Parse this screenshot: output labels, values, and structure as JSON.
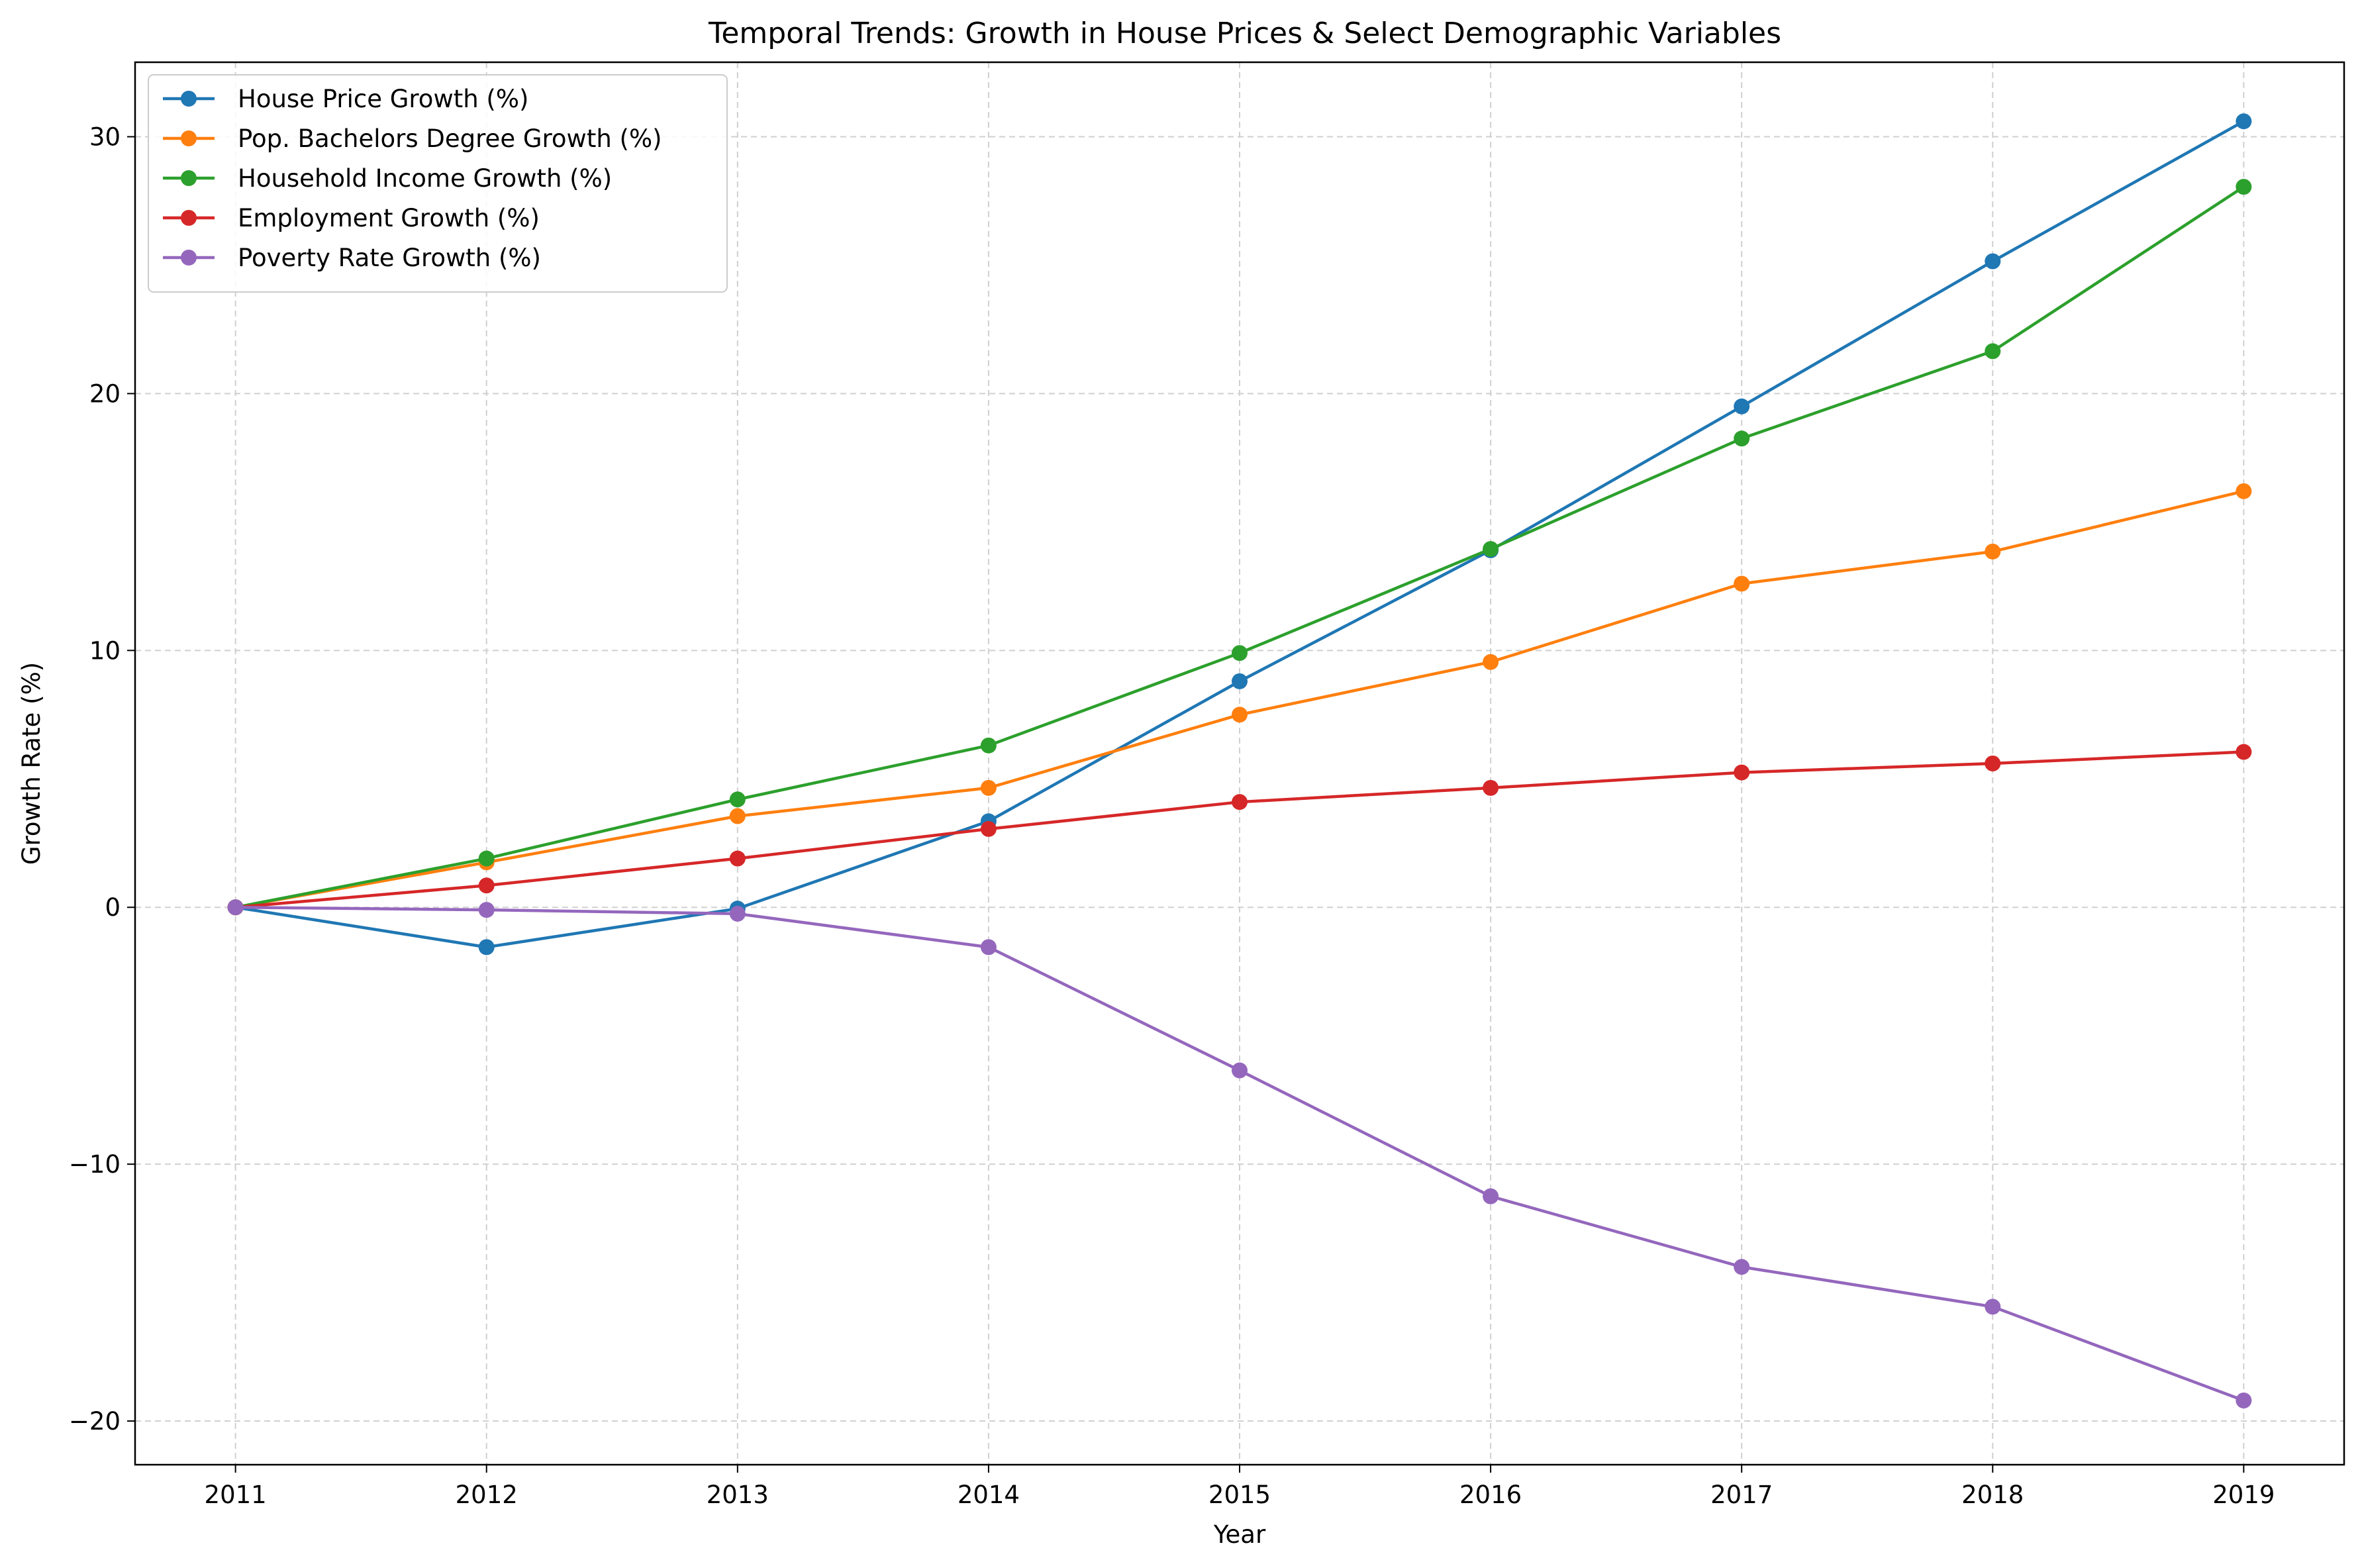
{
  "chart_data": {
    "type": "line",
    "title": "Temporal Trends: Growth in House Prices & Select Demographic Variables",
    "xlabel": "Year",
    "ylabel": "Growth Rate (%)",
    "x": [
      2011,
      2012,
      2013,
      2014,
      2015,
      2016,
      2017,
      2018,
      2019
    ],
    "x_tick_labels": [
      "2011",
      "2012",
      "2013",
      "2014",
      "2015",
      "2016",
      "2017",
      "2018",
      "2019"
    ],
    "xlim": [
      2010.6,
      2019.4
    ],
    "ylim": [
      -21.7,
      32.9
    ],
    "y_ticks": [
      -20,
      -10,
      0,
      10,
      20,
      30
    ],
    "y_tick_labels": [
      "−20",
      "−10",
      "0",
      "10",
      "20",
      "30"
    ],
    "grid": true,
    "legend_position": "upper-left",
    "series": [
      {
        "name": "House Price Growth (%)",
        "color": "#1f77b4",
        "values": [
          0,
          -1.55,
          -0.05,
          3.35,
          8.8,
          13.9,
          19.5,
          25.15,
          30.6
        ]
      },
      {
        "name": "Pop. Bachelors Degree Growth (%)",
        "color": "#ff7f0e",
        "values": [
          0,
          1.75,
          3.55,
          4.65,
          7.5,
          9.55,
          12.6,
          13.85,
          16.2
        ]
      },
      {
        "name": "Household Income Growth (%)",
        "color": "#2ca02c",
        "values": [
          0,
          1.9,
          4.2,
          6.3,
          9.9,
          13.95,
          18.25,
          21.65,
          28.05
        ]
      },
      {
        "name": "Employment Growth (%)",
        "color": "#d62728",
        "values": [
          0,
          0.85,
          1.9,
          3.05,
          4.1,
          4.65,
          5.25,
          5.6,
          6.05
        ]
      },
      {
        "name": "Poverty Rate Growth (%)",
        "color": "#9467bd",
        "values": [
          0,
          -0.1,
          -0.25,
          -1.55,
          -6.35,
          -11.25,
          -14.0,
          -15.55,
          -19.2
        ]
      }
    ]
  }
}
